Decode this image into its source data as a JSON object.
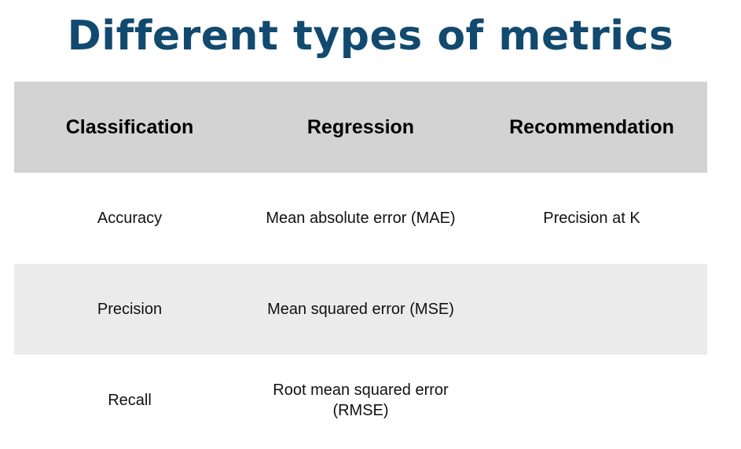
{
  "slide": {
    "title": "Different types of metrics"
  },
  "table": {
    "headers": [
      "Classification",
      "Regression",
      "Recommendation"
    ],
    "rows": [
      [
        "Accuracy",
        "Mean absolute error (MAE)",
        "Precision at K"
      ],
      [
        "Precision",
        "Mean squared error (MSE)",
        ""
      ],
      [
        "Recall",
        "Root mean squared error (RMSE)",
        ""
      ]
    ]
  },
  "colors": {
    "title": "#124a6f",
    "header_background": "#d3d3d3",
    "shaded_row_background": "#ebebeb"
  }
}
